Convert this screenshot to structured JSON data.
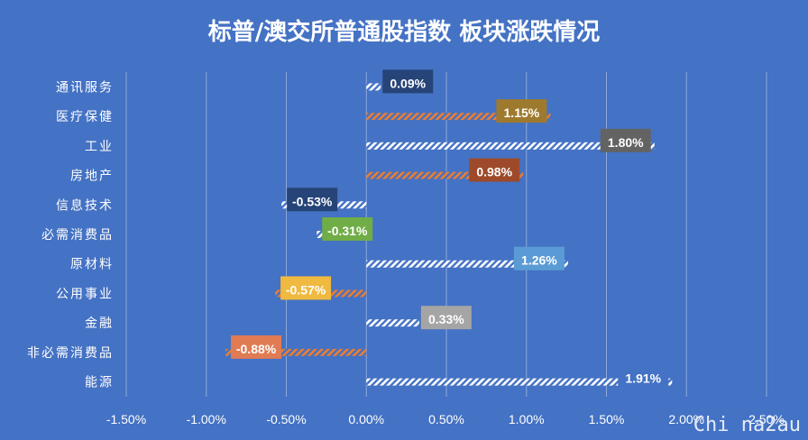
{
  "chart_data": {
    "type": "bar",
    "orientation": "horizontal",
    "title": "标普/澳交所普通股指数 板块涨跌情况",
    "categories": [
      "通讯服务",
      "医疗保健",
      "工业",
      "房地产",
      "信息技术",
      "必需消费品",
      "原材料",
      "公用事业",
      "金融",
      "非必需消费品",
      "能源"
    ],
    "values": [
      0.09,
      1.15,
      1.8,
      0.98,
      -0.53,
      -0.31,
      1.26,
      -0.57,
      0.33,
      -0.88,
      1.91
    ],
    "data_labels": [
      "0.09%",
      "1.15%",
      "1.80%",
      "0.98%",
      "-0.53%",
      "-0.31%",
      "1.26%",
      "-0.57%",
      "0.33%",
      "-0.88%",
      "1.91%"
    ],
    "xlim": [
      -1.5,
      2.5
    ],
    "ticks": [
      -1.5,
      -1.0,
      -0.5,
      0.0,
      0.5,
      1.0,
      1.5,
      2.0,
      2.5
    ],
    "tick_labels": [
      "-1.50%",
      "-1.00%",
      "-0.50%",
      "0.00%",
      "0.50%",
      "1.00%",
      "1.50%",
      "2.00%",
      "2.50%"
    ],
    "grid": true,
    "legend": "none",
    "bar_pattern_colors": [
      "#FFFFFF",
      "#ED7D31",
      "#FFFFFF",
      "#ED7D31",
      "#FFFFFF",
      "#FFFFFF",
      "#FFFFFF",
      "#ED7D31",
      "#FFFFFF",
      "#ED7D31",
      "#FFFFFF"
    ],
    "label_box_colors": [
      "#264478",
      "#9E7A2E",
      "#636363",
      "#9E4A2A",
      "#264478",
      "#70AD47",
      "#5B9BD5",
      "#F0B940",
      "#A5A5A5",
      "#E07B54",
      "#4472C4"
    ]
  },
  "background_color": "#4472C4",
  "watermark": "Chi na2au"
}
